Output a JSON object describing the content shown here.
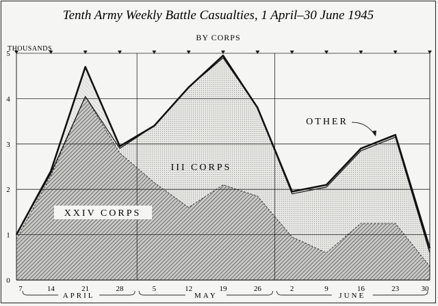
{
  "chart_data": {
    "type": "area",
    "title": "Tenth Army Weekly Battle Casualties, 1 April–30 June 1945",
    "subtitle": "BY CORPS",
    "ylabel": "THOUSANDS",
    "xlabel": "",
    "ylim": [
      0,
      5
    ],
    "yticks": [
      "0",
      "1",
      "2",
      "3",
      "4",
      "5"
    ],
    "x_tick_labels": [
      "7",
      "14",
      "21",
      "28",
      "5",
      "12",
      "19",
      "26",
      "2",
      "9",
      "16",
      "23",
      "30"
    ],
    "months": [
      "APRIL",
      "MAY",
      "JUNE"
    ],
    "grid": true,
    "stacked": true,
    "series": [
      {
        "name": "XXIV CORPS",
        "values": [
          0.9,
          2.3,
          4.05,
          2.8,
          2.15,
          1.6,
          2.1,
          1.85,
          0.95,
          0.6,
          1.25,
          1.25,
          0.3
        ]
      },
      {
        "name": "III CORPS",
        "values": [
          0.1,
          0.05,
          0.0,
          0.1,
          1.25,
          2.65,
          2.8,
          1.95,
          0.95,
          1.45,
          1.6,
          1.9,
          0.3
        ]
      },
      {
        "name": "OTHER",
        "values": [
          0.0,
          0.05,
          0.65,
          0.05,
          0.0,
          0.0,
          0.05,
          0.0,
          0.05,
          0.05,
          0.05,
          0.05,
          0.1
        ]
      }
    ]
  }
}
